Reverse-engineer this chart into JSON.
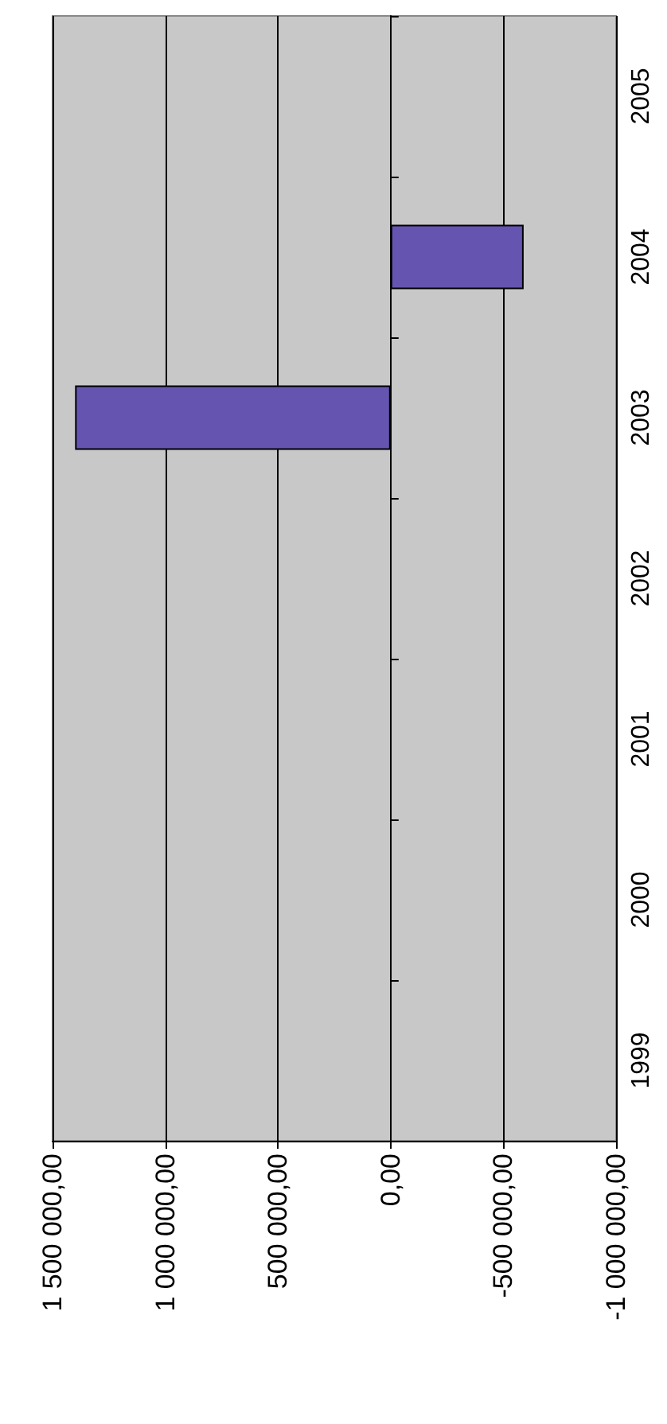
{
  "chart_data": {
    "type": "bar",
    "orientation": "horizontal",
    "categories": [
      "2005",
      "2004",
      "2003",
      "2002",
      "2001",
      "2000",
      "1999"
    ],
    "series": [
      {
        "color": "#6655b0",
        "values": [
          null,
          -590000,
          1400000,
          null,
          null,
          null,
          null
        ]
      }
    ],
    "xlim": [
      1500000,
      -1000000
    ],
    "xticks": [
      {
        "value": 1500000,
        "label": "1 500 000,00"
      },
      {
        "value": 1000000,
        "label": "1 000 000,00"
      },
      {
        "value": 500000,
        "label": "500 000,00"
      },
      {
        "value": 0,
        "label": "0,00"
      },
      {
        "value": -500000,
        "label": "-500 000,00"
      },
      {
        "value": -1000000,
        "label": "-1 000 000,00"
      }
    ],
    "grid": "x"
  }
}
